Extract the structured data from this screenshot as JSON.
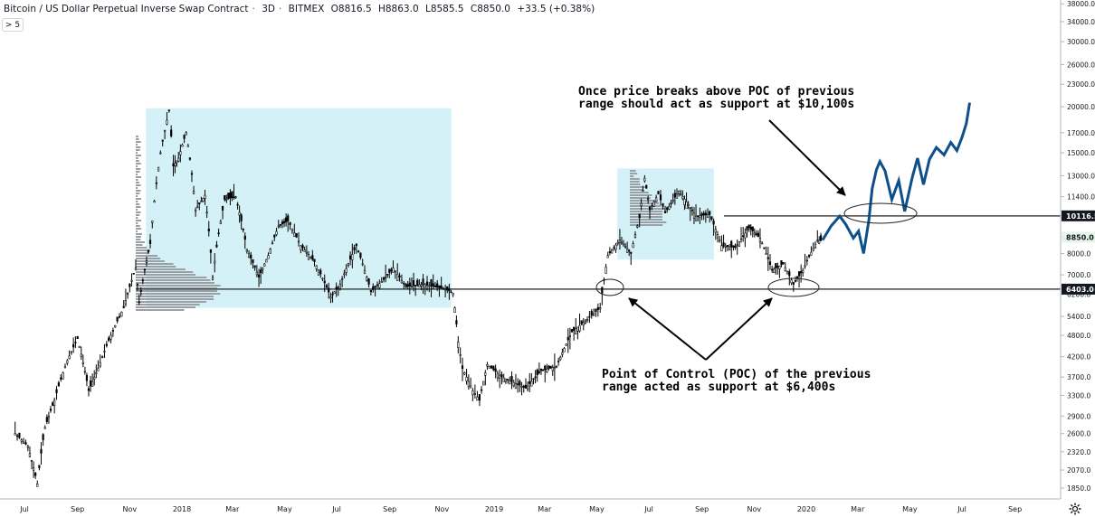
{
  "header": {
    "title": "Bitcoin / US Dollar Perpetual Inverse Swap Contract",
    "interval": "3D",
    "exchange": "BITMEX",
    "open": "O8816.5",
    "high": "H8863.0",
    "low": "L8585.5",
    "close": "C8850.0",
    "change": "+33.5 (+0.38%)",
    "collapse_label": "> 5"
  },
  "annotations": {
    "top_line1": "Once price breaks above POC of previous",
    "top_line2": "range should act as support at $10,100s",
    "bottom_line1": "Point of Control (POC) of the previous",
    "bottom_line2": "range acted as support at $6,400s"
  },
  "colors": {
    "candle": "#000000",
    "projection": "#0d4f8b",
    "box": "#cdeef6",
    "volume_profile": "#9aa0a6",
    "price_line": "#444444",
    "label_10116": "#131722",
    "label_8850": "#e6f4ea"
  },
  "chart_data": {
    "type": "line",
    "scale": "log",
    "y_tick_labels": [
      "38000.0",
      "34000.0",
      "30000.0",
      "26000.0",
      "23000.0",
      "20000.0",
      "17000.0",
      "15000.0",
      "13000.0",
      "11400.0",
      "10000.0",
      "8850.0",
      "8000.0",
      "7000.0",
      "6200.0",
      "5400.0",
      "4800.0",
      "4200.0",
      "3700.0",
      "3300.0",
      "2900.0",
      "2600.0",
      "2320.0",
      "2070.0",
      "1850.0"
    ],
    "x_tick_labels": [
      "Jul",
      "Sep",
      "Nov",
      "2018",
      "Mar",
      "May",
      "Jul",
      "Sep",
      "Nov",
      "2019",
      "Mar",
      "May",
      "Jul",
      "Sep",
      "Nov",
      "2020",
      "Mar",
      "May",
      "Jul",
      "Sep"
    ],
    "price_labels": [
      "10116.5",
      "8850.0",
      "6403.0"
    ],
    "horizontal_levels": [
      10116.5,
      6403.0
    ],
    "historical_close": [
      [
        "2017-06-20",
        2600
      ],
      [
        "2017-07-05",
        2400
      ],
      [
        "2017-07-16",
        1900
      ],
      [
        "2017-07-25",
        2700
      ],
      [
        "2017-08-05",
        3200
      ],
      [
        "2017-08-20",
        4100
      ],
      [
        "2017-09-01",
        4700
      ],
      [
        "2017-09-14",
        3400
      ],
      [
        "2017-09-25",
        3900
      ],
      [
        "2017-10-10",
        4800
      ],
      [
        "2017-10-25",
        5700
      ],
      [
        "2017-11-08",
        7300
      ],
      [
        "2017-11-12",
        5900
      ],
      [
        "2017-11-25",
        8500
      ],
      [
        "2017-12-07",
        15000
      ],
      [
        "2017-12-17",
        19500
      ],
      [
        "2017-12-22",
        13800
      ],
      [
        "2017-12-28",
        14500
      ],
      [
        "2018-01-06",
        17000
      ],
      [
        "2018-01-17",
        10500
      ],
      [
        "2018-01-28",
        11500
      ],
      [
        "2018-02-06",
        6900
      ],
      [
        "2018-02-20",
        11200
      ],
      [
        "2018-03-05",
        11400
      ],
      [
        "2018-03-18",
        8200
      ],
      [
        "2018-04-01",
        6900
      ],
      [
        "2018-04-12",
        7900
      ],
      [
        "2018-04-24",
        9500
      ],
      [
        "2018-05-05",
        9800
      ],
      [
        "2018-05-20",
        8400
      ],
      [
        "2018-06-05",
        7600
      ],
      [
        "2018-06-24",
        6100
      ],
      [
        "2018-07-05",
        6600
      ],
      [
        "2018-07-24",
        8400
      ],
      [
        "2018-08-10",
        6300
      ],
      [
        "2018-08-25",
        6800
      ],
      [
        "2018-09-05",
        7300
      ],
      [
        "2018-09-20",
        6500
      ],
      [
        "2018-10-10",
        6600
      ],
      [
        "2018-11-05",
        6400
      ],
      [
        "2018-11-14",
        6250
      ],
      [
        "2018-11-20",
        4600
      ],
      [
        "2018-11-25",
        3900
      ],
      [
        "2018-12-07",
        3400
      ],
      [
        "2018-12-15",
        3200
      ],
      [
        "2018-12-24",
        4000
      ],
      [
        "2019-01-10",
        3700
      ],
      [
        "2019-02-07",
        3450
      ],
      [
        "2019-02-25",
        3850
      ],
      [
        "2019-03-15",
        3950
      ],
      [
        "2019-04-02",
        4900
      ],
      [
        "2019-04-20",
        5300
      ],
      [
        "2019-05-05",
        5700
      ],
      [
        "2019-05-14",
        7900
      ],
      [
        "2019-05-28",
        8700
      ],
      [
        "2019-06-10",
        8000
      ],
      [
        "2019-06-20",
        10000
      ],
      [
        "2019-06-26",
        12800
      ],
      [
        "2019-07-02",
        10500
      ],
      [
        "2019-07-12",
        11600
      ],
      [
        "2019-07-20",
        10300
      ],
      [
        "2019-08-05",
        11800
      ],
      [
        "2019-08-25",
        10100
      ],
      [
        "2019-09-10",
        10200
      ],
      [
        "2019-09-24",
        8400
      ],
      [
        "2019-10-10",
        8300
      ],
      [
        "2019-10-26",
        9400
      ],
      [
        "2019-11-08",
        8800
      ],
      [
        "2019-11-22",
        7200
      ],
      [
        "2019-12-05",
        7500
      ],
      [
        "2019-12-17",
        6600
      ],
      [
        "2019-12-28",
        7200
      ],
      [
        "2020-01-14",
        8700
      ],
      [
        "2020-01-20",
        8650
      ]
    ],
    "projection_close": [
      [
        "2020-01-20",
        8700
      ],
      [
        "2020-01-30",
        9500
      ],
      [
        "2020-02-09",
        10100
      ],
      [
        "2020-02-16",
        9600
      ],
      [
        "2020-02-25",
        8800
      ],
      [
        "2020-03-02",
        9200
      ],
      [
        "2020-03-08",
        8000
      ],
      [
        "2020-03-14",
        9800
      ],
      [
        "2020-03-18",
        12000
      ],
      [
        "2020-03-23",
        13500
      ],
      [
        "2020-03-27",
        14200
      ],
      [
        "2020-04-02",
        13400
      ],
      [
        "2020-04-10",
        11200
      ],
      [
        "2020-04-18",
        12600
      ],
      [
        "2020-04-25",
        10400
      ],
      [
        "2020-05-04",
        12900
      ],
      [
        "2020-05-10",
        14500
      ],
      [
        "2020-05-17",
        12300
      ],
      [
        "2020-05-24",
        14400
      ],
      [
        "2020-06-01",
        15500
      ],
      [
        "2020-06-10",
        14800
      ],
      [
        "2020-06-18",
        16000
      ],
      [
        "2020-06-25",
        15200
      ],
      [
        "2020-07-01",
        16500
      ],
      [
        "2020-07-06",
        18000
      ],
      [
        "2020-07-10",
        20500
      ]
    ],
    "ranges": [
      {
        "start": "2017-11-20",
        "end": "2018-11-12",
        "low": 5700,
        "high": 19800
      },
      {
        "start": "2019-05-25",
        "end": "2019-09-15",
        "low": 7700,
        "high": 13600
      }
    ]
  }
}
